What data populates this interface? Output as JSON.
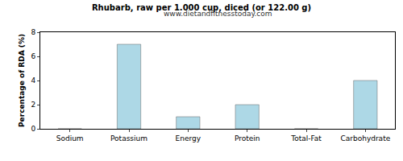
{
  "chart_data": {
    "type": "bar",
    "title": "Rhubarb, raw per 1.000 cup, diced (or 122.00 g)",
    "subtitle": "www.dietandfitnesstoday.com",
    "y_label": "Percentage of RDA (%)",
    "categories": [
      "Sodium",
      "Potassium",
      "Energy",
      "Protein",
      "Total-Fat",
      "Carbohydrate"
    ],
    "values": [
      0,
      7,
      1,
      2,
      0,
      4
    ],
    "color": "#add8e6",
    "ylim": [
      0,
      8
    ],
    "yticks": [
      0,
      2,
      4,
      6,
      8
    ],
    "grid": false
  }
}
